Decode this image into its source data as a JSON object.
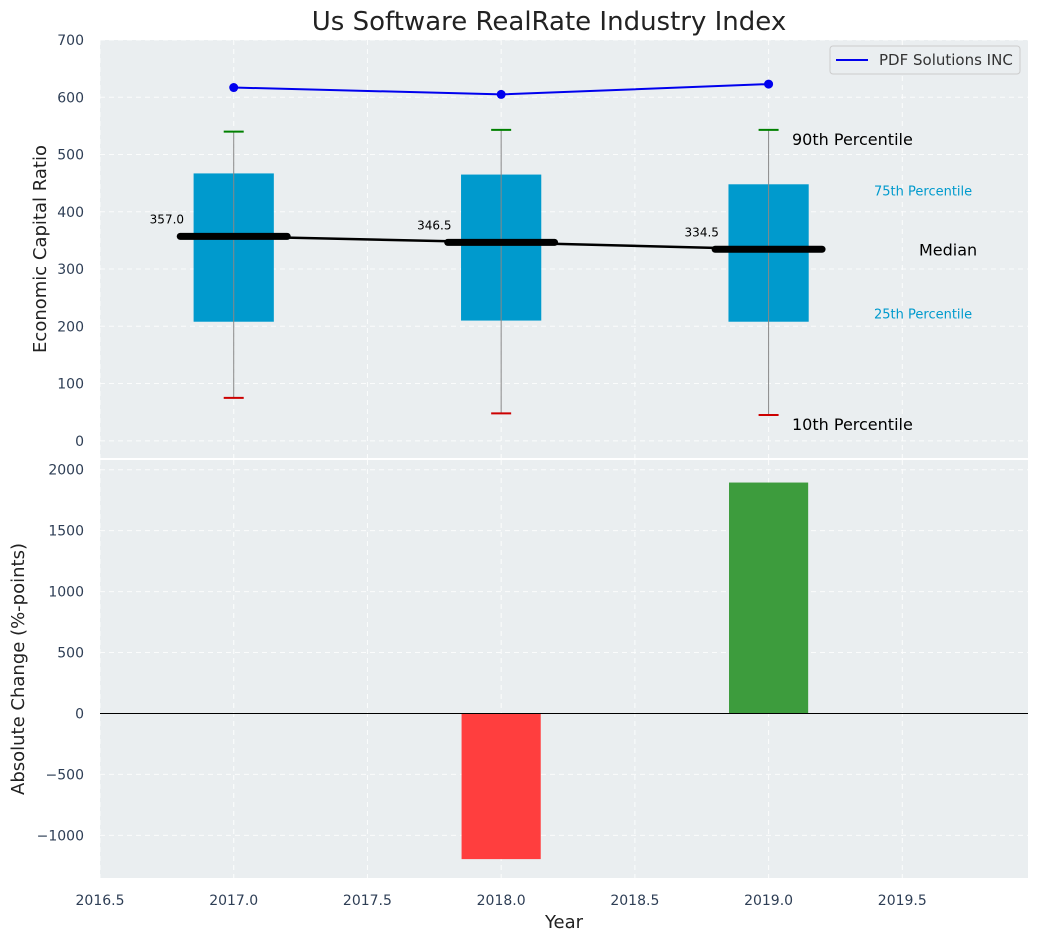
{
  "title": "Us Software RealRate Industry Index",
  "colors": {
    "plot_bg": "#eaeef0",
    "box": "#009acd",
    "median": "#000000",
    "company_line": "#0000ee",
    "whisker": "#888888",
    "cap_top": "#008000",
    "cap_bottom": "#cc0000",
    "bar_positive": "#3d9c3d",
    "bar_negative": "#ff3e3e",
    "annot_percentile": "#009acd"
  },
  "chart_data": [
    {
      "type": "box",
      "ylabel": "Economic Capital Ratio",
      "ylim": [
        -30,
        700
      ],
      "yticks": [
        0,
        100,
        200,
        300,
        400,
        500,
        600,
        700
      ],
      "x": [
        2017,
        2018,
        2019
      ],
      "p10": [
        75,
        48,
        45
      ],
      "p25": [
        208,
        210,
        208
      ],
      "median": [
        357.0,
        346.5,
        334.5
      ],
      "median_labels": [
        "357.0",
        "346.5",
        "334.5"
      ],
      "p75": [
        467,
        465,
        448
      ],
      "p90": [
        540,
        543,
        543
      ],
      "series": [
        {
          "name": "PDF Solutions INC",
          "values": [
            617,
            605,
            623
          ]
        }
      ],
      "legend": {
        "label": "PDF Solutions INC",
        "position": "upper right"
      },
      "annotations": {
        "p90": "90th Percentile",
        "p75": "75th Percentile",
        "median": "Median",
        "p25": "25th Percentile",
        "p10": "10th Percentile"
      },
      "grid": true
    },
    {
      "type": "bar",
      "xlabel": "Year",
      "ylabel": "Absolute Change (%-points)",
      "xlim": [
        2016.5,
        2019.97
      ],
      "ylim": [
        -1350,
        2080
      ],
      "yticks": [
        -1000,
        -500,
        0,
        500,
        1000,
        1500,
        2000
      ],
      "ytick_labels": [
        "−1000",
        "−500",
        "0",
        "500",
        "1000",
        "1500",
        "2000"
      ],
      "xticks": [
        2016.5,
        2017.0,
        2017.5,
        2018.0,
        2018.5,
        2019.0,
        2019.5
      ],
      "xtick_labels": [
        "2016.5",
        "2017.0",
        "2017.5",
        "2018.0",
        "2018.5",
        "2019.0",
        "2019.5"
      ],
      "x": [
        2018,
        2019
      ],
      "values": [
        -1195,
        1895
      ],
      "grid": true
    }
  ]
}
